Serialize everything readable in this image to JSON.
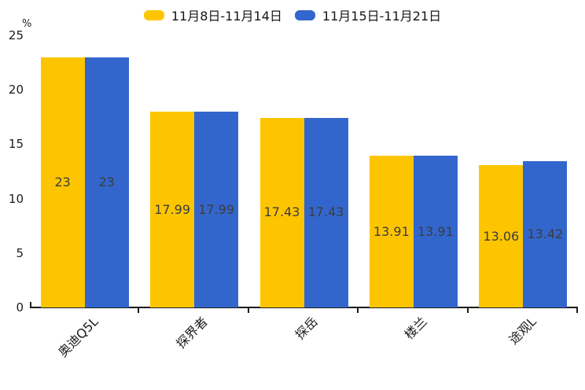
{
  "chart_data": {
    "type": "bar",
    "title": "",
    "categories": [
      "奥迪Q5L",
      "探界者",
      "探岳",
      "楼兰",
      "途观L"
    ],
    "series": [
      {
        "name": "11月8日-11月14日",
        "color": "#FDC500",
        "values": [
          23,
          17.99,
          17.43,
          13.91,
          13.06
        ]
      },
      {
        "name": "11月15日-11月21日",
        "color": "#3366CC",
        "values": [
          23,
          17.99,
          17.43,
          13.91,
          13.42
        ]
      }
    ],
    "ylabel": "%",
    "yticks": [
      0,
      5,
      10,
      15,
      20,
      25
    ],
    "ylim": [
      0,
      25
    ],
    "grid": false,
    "legend_position": "top-center",
    "value_labels_shown": true,
    "colors": {
      "axis": "#1c1c1c",
      "tick_text": "#1c1c1c",
      "value_label_text": "#3d3d3d",
      "legend_text": "#161616",
      "background": "#ffffff"
    }
  }
}
